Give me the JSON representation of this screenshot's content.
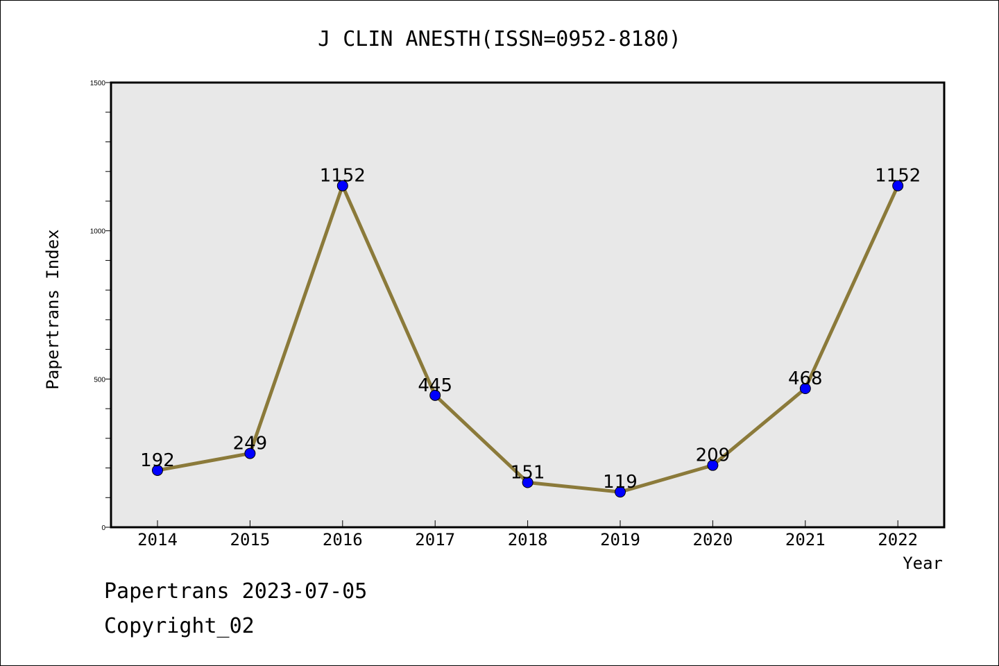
{
  "chart_data": {
    "type": "line",
    "title": "J CLIN ANESTH(ISSN=0952-8180)",
    "xlabel": "Year",
    "ylabel": "Papertrans Index",
    "categories": [
      "2014",
      "2015",
      "2016",
      "2017",
      "2018",
      "2019",
      "2020",
      "2021",
      "2022"
    ],
    "values": [
      192,
      249,
      1152,
      445,
      151,
      119,
      209,
      468,
      1152
    ],
    "data_labels": [
      "192",
      "249",
      "1152",
      "445",
      "151",
      "119",
      "209",
      "468",
      "1152"
    ],
    "ylim": [
      0,
      1500
    ],
    "yticks": [
      0,
      500,
      1000,
      1500
    ],
    "ytick_labels": [
      "0",
      "500",
      "1000",
      "1500"
    ],
    "grid": false,
    "line_color": "#8b7a3a",
    "marker_color": "#0000ff",
    "plot_background": "#e8e8e8"
  },
  "footer": {
    "line1": "Papertrans 2023-07-05",
    "line2": "Copyright_02"
  }
}
